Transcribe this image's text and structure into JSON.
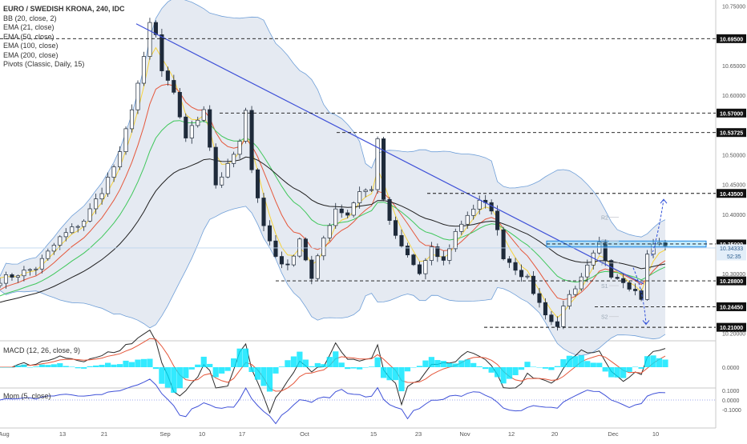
{
  "header": {
    "title": "EURO / SWEDISH KRONA, 240, IDC",
    "indicators": [
      "BB (20, close, 2)",
      "EMA (21, close)",
      "EMA (50, close)",
      "EMA (100, close)",
      "EMA (200, close)",
      "Pivots (Classic, Daily, 15)"
    ]
  },
  "colors": {
    "up": "#26a69a",
    "down": "#ef5350",
    "candle": "#1e2a3a",
    "bb_fill": "#cfd8e8",
    "bb_line": "#6f9fd8",
    "ema21": "#f6d33c",
    "ema50": "#e5573b",
    "ema100": "#3fc75b",
    "ema200": "#202020",
    "trendline": "#3f51d8",
    "zone": "#4fc3f7",
    "macd": "#2b2b2b",
    "signal": "#e5573b",
    "hist": "#00e5ff",
    "mom": "#3f51d8",
    "arrow": "#2f4fd8"
  },
  "chart_data": {
    "type": "candlestick",
    "title": "EURO / SWEDISH KRONA, 240, IDC",
    "price_axis": {
      "ylim": [
        10.19,
        10.76
      ],
      "ticks": [
        10.75,
        10.65,
        10.6,
        10.5,
        10.45,
        10.4,
        10.3,
        10.2
      ],
      "tick_labels": [
        "10.75000",
        "10.65000",
        "10.60000",
        "10.50000",
        "10.45000",
        "10.40000",
        "10.30000",
        "10.20000"
      ]
    },
    "price_levels": [
      {
        "value": 10.695,
        "label": "10.69500"
      },
      {
        "value": 10.57,
        "label": "10.57000"
      },
      {
        "value": 10.53725,
        "label": "10.53725"
      },
      {
        "value": 10.435,
        "label": "10.43500"
      },
      {
        "value": 10.35,
        "label": "10.35000"
      },
      {
        "value": 10.288,
        "label": "10.28800"
      },
      {
        "value": 10.2445,
        "label": "10.24450"
      },
      {
        "value": 10.21,
        "label": "10.21000"
      }
    ],
    "last_price": {
      "value": 10.34333,
      "label": "10.34333",
      "countdown": "52:35"
    },
    "pivot_labels": [
      "R2",
      "R1",
      "P",
      "S1",
      "S2"
    ],
    "x_axis": {
      "ticks": [
        "Aug",
        "13",
        "21",
        "Sep",
        "10",
        "17",
        "Oct",
        "15",
        "23",
        "Nov",
        "12",
        "20",
        "Dec",
        "10"
      ]
    },
    "close_path": [
      [
        0,
        10.29
      ],
      [
        6,
        10.31
      ],
      [
        10,
        10.36
      ],
      [
        14,
        10.39
      ],
      [
        17,
        10.44
      ],
      [
        20,
        10.5
      ],
      [
        22,
        10.58
      ],
      [
        24,
        10.66
      ],
      [
        25,
        10.72
      ],
      [
        26,
        10.7
      ],
      [
        27,
        10.64
      ],
      [
        29,
        10.6
      ],
      [
        31,
        10.53
      ],
      [
        33,
        10.56
      ],
      [
        34,
        10.58
      ],
      [
        36,
        10.45
      ],
      [
        38,
        10.48
      ],
      [
        40,
        10.52
      ],
      [
        41,
        10.57
      ],
      [
        42,
        10.48
      ],
      [
        44,
        10.38
      ],
      [
        46,
        10.33
      ],
      [
        48,
        10.31
      ],
      [
        50,
        10.36
      ],
      [
        52,
        10.29
      ],
      [
        54,
        10.36
      ],
      [
        56,
        10.41
      ],
      [
        58,
        10.4
      ],
      [
        60,
        10.44
      ],
      [
        62,
        10.44
      ],
      [
        63,
        10.53
      ],
      [
        64,
        10.42
      ],
      [
        66,
        10.36
      ],
      [
        68,
        10.33
      ],
      [
        70,
        10.3
      ],
      [
        72,
        10.34
      ],
      [
        74,
        10.32
      ],
      [
        76,
        10.37
      ],
      [
        78,
        10.4
      ],
      [
        80,
        10.42
      ],
      [
        82,
        10.41
      ],
      [
        84,
        10.33
      ],
      [
        86,
        10.31
      ],
      [
        88,
        10.29
      ],
      [
        90,
        10.25
      ],
      [
        92,
        10.22
      ],
      [
        93,
        10.21
      ],
      [
        94,
        10.25
      ],
      [
        96,
        10.27
      ],
      [
        98,
        10.31
      ],
      [
        100,
        10.35
      ],
      [
        102,
        10.3
      ],
      [
        104,
        10.29
      ],
      [
        106,
        10.27
      ],
      [
        107,
        10.26
      ],
      [
        108,
        10.33
      ],
      [
        109,
        10.35
      ]
    ],
    "indicators": {
      "macd": {
        "label": "MACD (12, 26, close, 9)",
        "ticks": [
          0.0
        ],
        "tick_labels": [
          "0.0000"
        ]
      },
      "mom": {
        "label": "Mom (5, close)",
        "ticks": [
          0.1,
          0.0,
          -0.1
        ],
        "tick_labels": [
          "0.1000",
          "0.0000",
          "-0.1000"
        ]
      }
    }
  }
}
